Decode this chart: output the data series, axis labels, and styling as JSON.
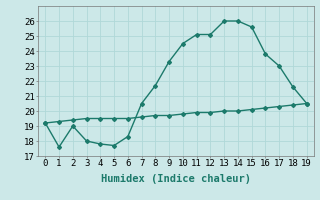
{
  "xlabel": "Humidex (Indice chaleur)",
  "x": [
    0,
    1,
    2,
    3,
    4,
    5,
    6,
    7,
    8,
    9,
    10,
    11,
    12,
    13,
    14,
    15,
    16,
    17,
    18,
    19
  ],
  "line1_y": [
    19.2,
    17.6,
    19.0,
    18.0,
    17.8,
    17.7,
    18.3,
    20.5,
    21.7,
    23.3,
    24.5,
    25.1,
    25.1,
    26.0,
    26.0,
    25.6,
    23.8,
    23.0,
    21.6,
    20.5
  ],
  "line2_y": [
    19.2,
    19.3,
    19.4,
    19.5,
    19.5,
    19.5,
    19.5,
    19.6,
    19.7,
    19.7,
    19.8,
    19.9,
    19.9,
    20.0,
    20.0,
    20.1,
    20.2,
    20.3,
    20.4,
    20.5
  ],
  "line_color": "#1c7a6b",
  "bg_color": "#cce8e8",
  "grid_color": "#b0d8d8",
  "ylim": [
    17,
    27
  ],
  "yticks": [
    17,
    18,
    19,
    20,
    21,
    22,
    23,
    24,
    25,
    26
  ],
  "xlim": [
    -0.5,
    19.5
  ],
  "tick_fontsize": 6.5,
  "label_fontsize": 7.5
}
